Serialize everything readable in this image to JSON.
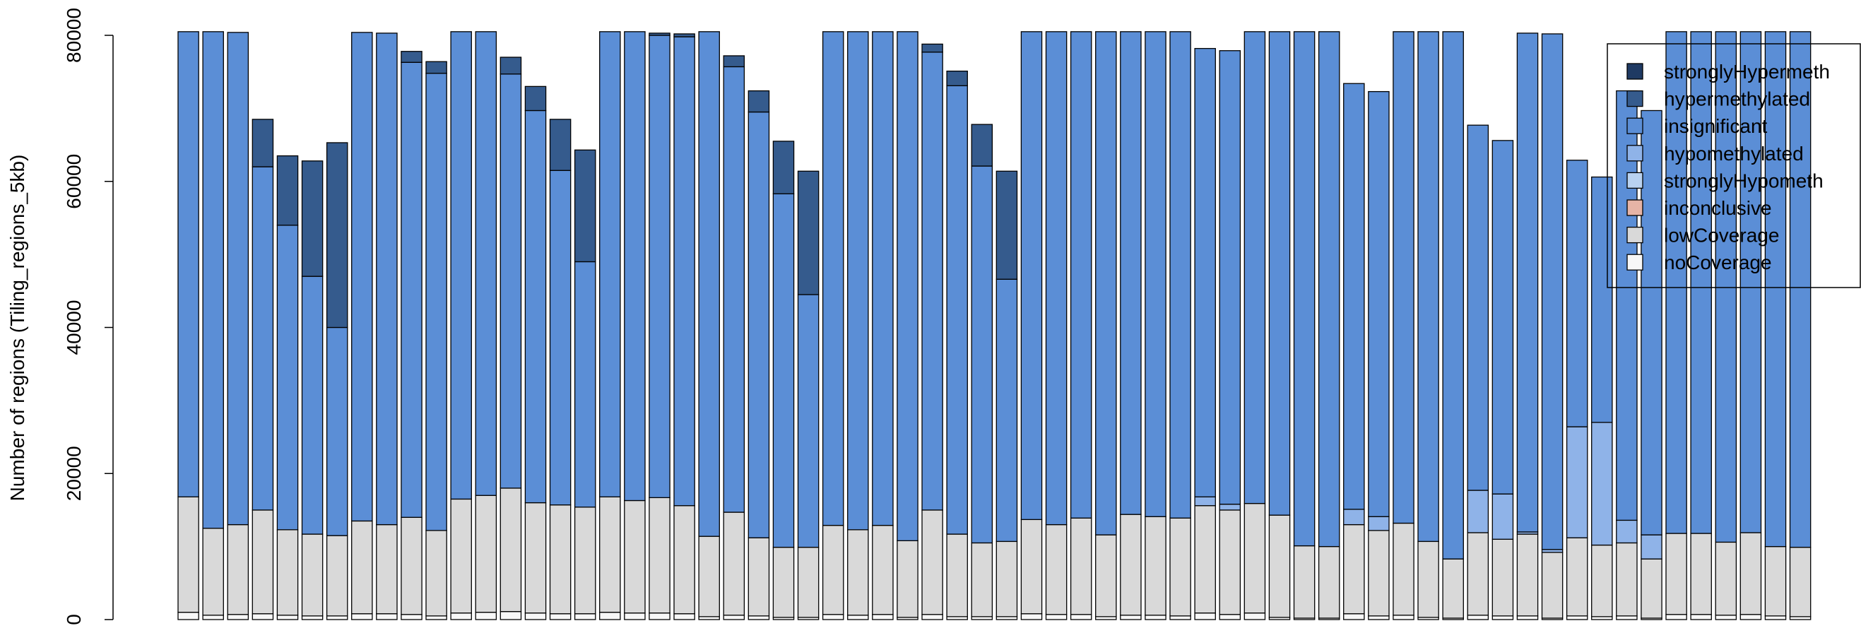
{
  "chart_data": {
    "type": "bar",
    "stacked": true,
    "ylabel": "Number of regions (Tiling_regions_5kb)",
    "ylim": [
      0,
      80000
    ],
    "yticks": [
      0,
      20000,
      40000,
      60000,
      80000
    ],
    "legend": "top-right",
    "series": [
      {
        "name": "stronglyHypermeth",
        "color": "#1f3a63",
        "values": [
          0,
          0,
          0,
          0,
          0,
          0,
          0,
          0,
          0,
          0,
          0,
          0,
          0,
          0,
          0,
          0,
          0,
          0,
          0,
          0,
          0,
          0,
          0,
          0,
          0,
          0,
          0,
          0,
          0,
          0,
          0,
          0,
          0,
          0,
          0,
          0,
          0,
          0,
          0,
          0,
          0,
          0,
          0,
          0,
          0,
          0,
          0,
          0,
          0,
          0,
          0,
          0,
          0,
          0,
          0,
          0,
          0,
          0,
          0,
          0,
          0,
          0,
          0,
          0,
          0,
          0
        ]
      },
      {
        "name": "hypermethylated",
        "color": "#355b8d",
        "values": [
          0,
          0,
          0,
          6500,
          9500,
          15800,
          25300,
          0,
          0,
          1500,
          1600,
          0,
          0,
          2300,
          3300,
          7000,
          15300,
          0,
          0,
          300,
          400,
          0,
          1500,
          2900,
          7200,
          16900,
          0,
          0,
          0,
          0,
          1100,
          2000,
          5700,
          14800,
          0,
          0,
          0,
          0,
          0,
          0,
          0,
          0,
          0,
          0,
          0,
          0,
          0,
          0,
          0,
          0,
          0,
          0,
          0,
          0,
          0,
          0,
          0,
          0,
          0,
          0,
          0,
          0,
          0,
          0,
          0,
          0
        ]
      },
      {
        "name": "insignificant",
        "color": "#5b8ed6",
        "values": [
          63700,
          68000,
          67400,
          47000,
          41700,
          35300,
          28500,
          66900,
          67300,
          62300,
          62600,
          64000,
          63500,
          56700,
          53700,
          45800,
          33600,
          63700,
          64200,
          63300,
          64200,
          69100,
          61000,
          58300,
          48400,
          34600,
          67600,
          68200,
          67600,
          69700,
          62700,
          61400,
          51600,
          35900,
          66800,
          67500,
          66600,
          68900,
          66100,
          66400,
          66600,
          61400,
          62100,
          64600,
          66200,
          70400,
          70500,
          58300,
          58200,
          67300,
          69800,
          72200,
          50000,
          48400,
          68300,
          70600,
          36500,
          33600,
          58800,
          58100,
          68700,
          68700,
          69900,
          68600,
          70500,
          70600
        ]
      },
      {
        "name": "hypomethylated",
        "color": "#8fb3e8",
        "values": [
          0,
          0,
          0,
          0,
          0,
          0,
          0,
          0,
          0,
          0,
          0,
          0,
          0,
          0,
          0,
          0,
          0,
          0,
          0,
          0,
          0,
          0,
          0,
          0,
          0,
          0,
          0,
          0,
          0,
          0,
          0,
          0,
          0,
          0,
          0,
          0,
          0,
          0,
          0,
          0,
          0,
          1200,
          800,
          0,
          0,
          0,
          0,
          2100,
          1900,
          0,
          0,
          0,
          5800,
          6200,
          300,
          400,
          15200,
          16800,
          3100,
          3300,
          0,
          0,
          0,
          0,
          0,
          0
        ]
      },
      {
        "name": "stronglyHypometh",
        "color": "#b9d2f0",
        "values": [
          0,
          0,
          0,
          0,
          0,
          0,
          0,
          0,
          0,
          0,
          0,
          0,
          0,
          0,
          0,
          0,
          0,
          0,
          0,
          0,
          0,
          0,
          0,
          0,
          0,
          0,
          0,
          0,
          0,
          0,
          0,
          0,
          0,
          0,
          0,
          0,
          0,
          0,
          0,
          0,
          0,
          0,
          0,
          0,
          0,
          0,
          0,
          0,
          0,
          0,
          0,
          0,
          0,
          0,
          0,
          0,
          0,
          0,
          0,
          0,
          0,
          0,
          0,
          0,
          0,
          0
        ]
      },
      {
        "name": "inconclusive",
        "color": "#e6b4a6",
        "values": [
          0,
          0,
          0,
          0,
          0,
          0,
          0,
          0,
          0,
          0,
          0,
          0,
          0,
          0,
          0,
          0,
          0,
          0,
          0,
          0,
          0,
          0,
          0,
          0,
          0,
          0,
          0,
          0,
          0,
          0,
          0,
          0,
          0,
          0,
          0,
          0,
          0,
          0,
          0,
          0,
          0,
          0,
          0,
          0,
          0,
          0,
          0,
          0,
          0,
          0,
          0,
          0,
          0,
          0,
          0,
          0,
          0,
          0,
          0,
          0,
          0,
          0,
          0,
          0,
          0,
          0
        ]
      },
      {
        "name": "lowCoverage",
        "color": "#d9d9d9",
        "values": [
          15800,
          11900,
          12300,
          14200,
          11700,
          11200,
          11000,
          12700,
          12200,
          13300,
          11700,
          15600,
          16000,
          16900,
          15100,
          14900,
          14600,
          15800,
          15400,
          15800,
          14800,
          11000,
          14100,
          10700,
          9600,
          9600,
          12200,
          11700,
          12200,
          10500,
          14300,
          11300,
          10100,
          10300,
          12900,
          12300,
          13200,
          11200,
          13800,
          13500,
          13400,
          14700,
          14300,
          15000,
          14000,
          9900,
          9800,
          12200,
          11700,
          12600,
          10400,
          8100,
          11300,
          10500,
          11200,
          9000,
          10700,
          9800,
          10000,
          8100,
          11100,
          11100,
          10000,
          11200,
          9500,
          9500
        ]
      },
      {
        "name": "noCoverage",
        "color": "#f7f7f7",
        "values": [
          1000,
          600,
          700,
          800,
          600,
          500,
          500,
          800,
          800,
          700,
          500,
          900,
          1000,
          1100,
          900,
          800,
          800,
          1000,
          900,
          900,
          800,
          400,
          600,
          500,
          300,
          300,
          700,
          600,
          700,
          300,
          700,
          400,
          400,
          400,
          800,
          700,
          700,
          400,
          600,
          600,
          500,
          900,
          700,
          900,
          300,
          200,
          200,
          800,
          500,
          600,
          300,
          200,
          600,
          500,
          500,
          200,
          500,
          400,
          500,
          200,
          700,
          700,
          600,
          700,
          500,
          400
        ]
      }
    ]
  }
}
